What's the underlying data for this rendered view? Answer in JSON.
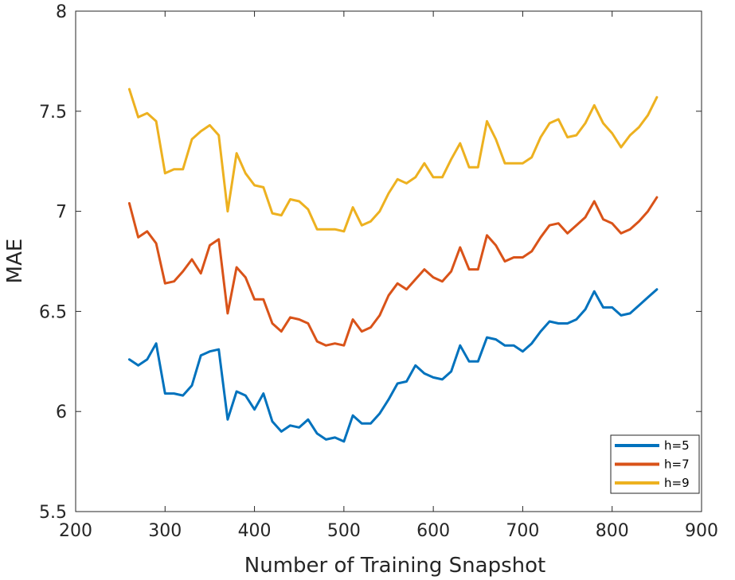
{
  "chart_data": {
    "type": "line",
    "title": "",
    "xlabel": "Number of Training Snapshot",
    "ylabel": "MAE",
    "xlim": [
      200,
      900
    ],
    "ylim": [
      5.5,
      8
    ],
    "xticks": [
      "200",
      "300",
      "400",
      "500",
      "600",
      "700",
      "800",
      "900"
    ],
    "yticks": [
      "5.5",
      "6",
      "6.5",
      "7",
      "7.5",
      "8"
    ],
    "grid": false,
    "legend_position": "bottom-right",
    "x": [
      260,
      270,
      280,
      290,
      300,
      310,
      320,
      330,
      340,
      350,
      360,
      370,
      380,
      390,
      400,
      410,
      420,
      430,
      440,
      450,
      460,
      470,
      480,
      490,
      500,
      510,
      520,
      530,
      540,
      550,
      560,
      570,
      580,
      590,
      600,
      610,
      620,
      630,
      640,
      650,
      660,
      670,
      680,
      690,
      700,
      710,
      720,
      730,
      740,
      750,
      760,
      770,
      780,
      790,
      800,
      810,
      820,
      830,
      840,
      850
    ],
    "series": [
      {
        "name": "h=5",
        "color": "#0072BD",
        "values": [
          6.26,
          6.23,
          6.26,
          6.34,
          6.09,
          6.09,
          6.08,
          6.13,
          6.28,
          6.3,
          6.31,
          5.96,
          6.1,
          6.08,
          6.01,
          6.09,
          5.95,
          5.9,
          5.93,
          5.92,
          5.96,
          5.89,
          5.86,
          5.87,
          5.85,
          5.98,
          5.94,
          5.94,
          5.99,
          6.06,
          6.14,
          6.15,
          6.23,
          6.19,
          6.17,
          6.16,
          6.2,
          6.33,
          6.25,
          6.25,
          6.37,
          6.36,
          6.33,
          6.33,
          6.3,
          6.34,
          6.4,
          6.45,
          6.44,
          6.44,
          6.46,
          6.51,
          6.6,
          6.52,
          6.52,
          6.48,
          6.49,
          6.53,
          6.57,
          6.61
        ]
      },
      {
        "name": "h=7",
        "color": "#D95319",
        "values": [
          7.04,
          6.87,
          6.9,
          6.84,
          6.64,
          6.65,
          6.7,
          6.76,
          6.69,
          6.83,
          6.86,
          6.49,
          6.72,
          6.67,
          6.56,
          6.56,
          6.44,
          6.4,
          6.47,
          6.46,
          6.44,
          6.35,
          6.33,
          6.34,
          6.33,
          6.46,
          6.4,
          6.42,
          6.48,
          6.58,
          6.64,
          6.61,
          6.66,
          6.71,
          6.67,
          6.65,
          6.7,
          6.82,
          6.71,
          6.71,
          6.88,
          6.83,
          6.75,
          6.77,
          6.77,
          6.8,
          6.87,
          6.93,
          6.94,
          6.89,
          6.93,
          6.97,
          7.05,
          6.96,
          6.94,
          6.89,
          6.91,
          6.95,
          7.0,
          7.07
        ]
      },
      {
        "name": "h=9",
        "color": "#EDB120",
        "values": [
          7.61,
          7.47,
          7.49,
          7.45,
          7.19,
          7.21,
          7.21,
          7.36,
          7.4,
          7.43,
          7.38,
          7.0,
          7.29,
          7.19,
          7.13,
          7.12,
          6.99,
          6.98,
          7.06,
          7.05,
          7.01,
          6.91,
          6.91,
          6.91,
          6.9,
          7.02,
          6.93,
          6.95,
          7.0,
          7.09,
          7.16,
          7.14,
          7.17,
          7.24,
          7.17,
          7.17,
          7.26,
          7.34,
          7.22,
          7.22,
          7.45,
          7.36,
          7.24,
          7.24,
          7.24,
          7.27,
          7.37,
          7.44,
          7.46,
          7.37,
          7.38,
          7.44,
          7.53,
          7.44,
          7.39,
          7.32,
          7.38,
          7.42,
          7.48,
          7.57
        ]
      }
    ]
  }
}
